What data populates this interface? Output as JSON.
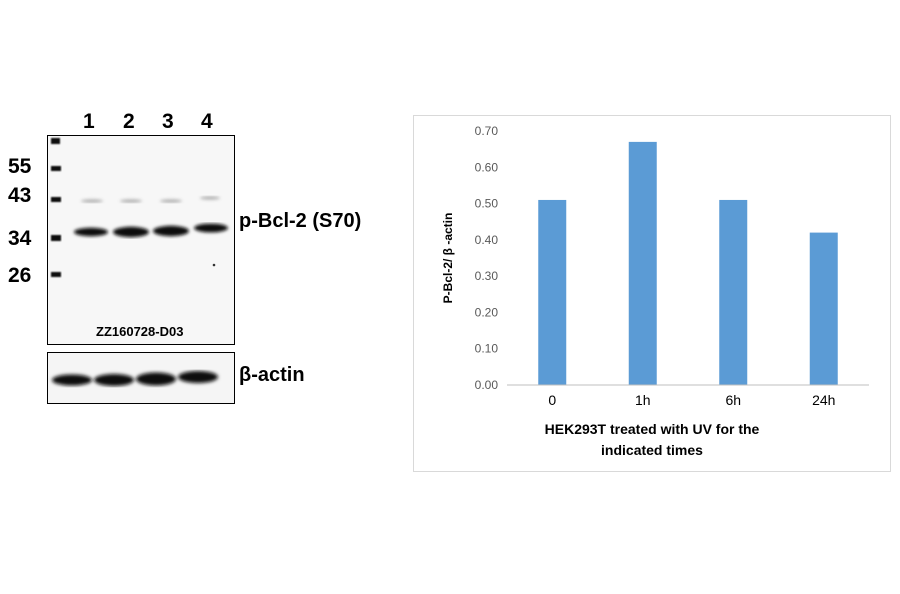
{
  "blot": {
    "lanes": [
      "1",
      "2",
      "3",
      "4"
    ],
    "markers": [
      "55",
      "43",
      "34",
      "26"
    ],
    "target_label": "p-Bcl-2 (S70)",
    "control_label": "β-actin",
    "code": "ZZ160728-D03"
  },
  "chart_data": {
    "type": "bar",
    "categories": [
      "0",
      "1h",
      "6h",
      "24h"
    ],
    "values": [
      0.51,
      0.67,
      0.51,
      0.42
    ],
    "ylabel": "P-Bcl-2/ β -actin",
    "xlabel_lines": [
      "HEK293T treated with UV for the",
      "indicated times"
    ],
    "ylim": [
      0,
      0.7
    ],
    "yticks": [
      "0.00",
      "0.10",
      "0.20",
      "0.30",
      "0.40",
      "0.50",
      "0.60",
      "0.70"
    ],
    "bar_color": "#5b9bd5",
    "grid": false
  }
}
